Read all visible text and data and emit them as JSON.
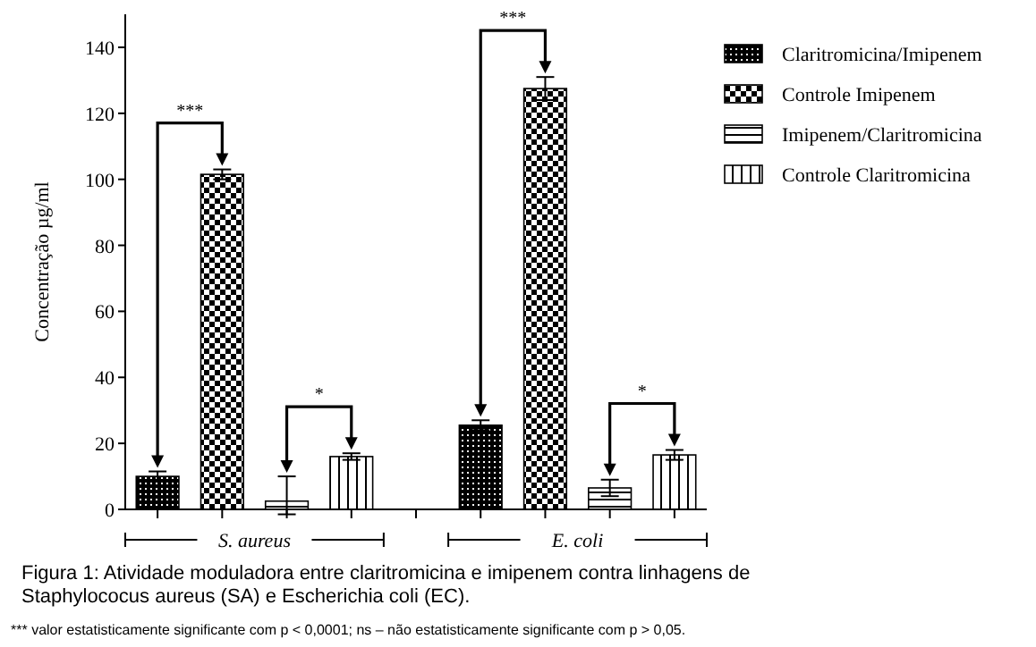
{
  "chart_data": {
    "type": "bar",
    "ylabel": "Concentração µg/ml",
    "categories": [
      "S. aureus",
      "E. coli"
    ],
    "series": [
      {
        "name": "Claritromicina/Imipenem",
        "color": "#000000",
        "values": [
          10,
          25.5
        ],
        "errors": [
          1.5,
          1.5
        ]
      },
      {
        "name": "Controle Imipenem",
        "color": "#000000",
        "values": [
          101.5,
          127.5
        ],
        "errors": [
          1.5,
          3.5
        ]
      },
      {
        "name": "Imipenem/Claritromicina",
        "color": "#000000",
        "values": [
          2.5,
          6.5
        ],
        "errors": [
          [
            -1.5,
            10
          ],
          2.5
        ]
      },
      {
        "name": "Controle Claritromicina",
        "color": "#000000",
        "values": [
          16,
          16.5
        ],
        "errors": [
          1,
          1.5
        ]
      }
    ],
    "ylim": [
      0,
      150
    ],
    "yticks": [
      0,
      20,
      40,
      60,
      80,
      100,
      120,
      140
    ],
    "grid": false,
    "legend": "top right",
    "annotations": [
      "***",
      "*",
      "***",
      "*",
      "Figura 1: Atividade moduladora entre claritromicina e imipenem contra linhagens de Staphylococus aureus (SA) e Escherichia coli (EC).",
      "*** valor estatisticamente significante com p < 0,0001; ns – não estatisticamente significante com p > 0,05."
    ]
  }
}
